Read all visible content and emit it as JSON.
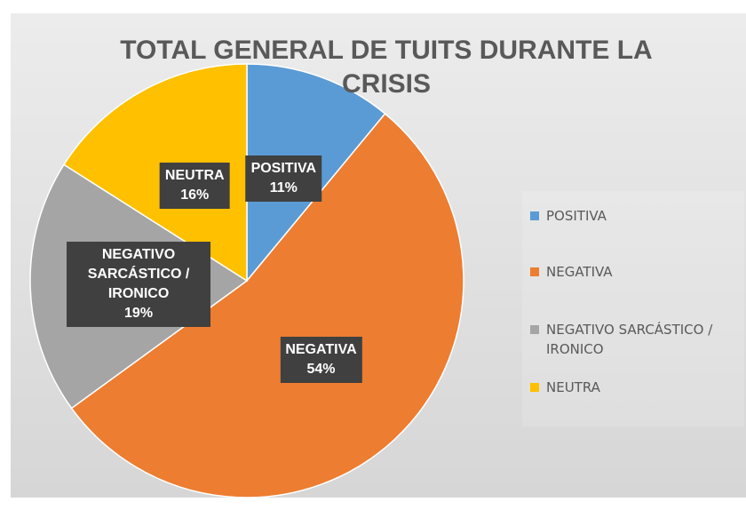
{
  "chart_data": {
    "type": "pie",
    "title": "TOTAL GENERAL DE TUITS DURANTE LA CRISIS",
    "categories": [
      "POSITIVA",
      "NEGATIVA",
      "NEGATIVO SARCÁSTICO / IRONICO",
      "NEUTRA"
    ],
    "values": [
      11,
      54,
      19,
      16
    ],
    "value_labels": [
      "11%",
      "54%",
      "19%",
      "16%"
    ],
    "colors": [
      "#5b9bd5",
      "#ed7d31",
      "#a5a5a5",
      "#ffc000"
    ],
    "legend": "right"
  }
}
